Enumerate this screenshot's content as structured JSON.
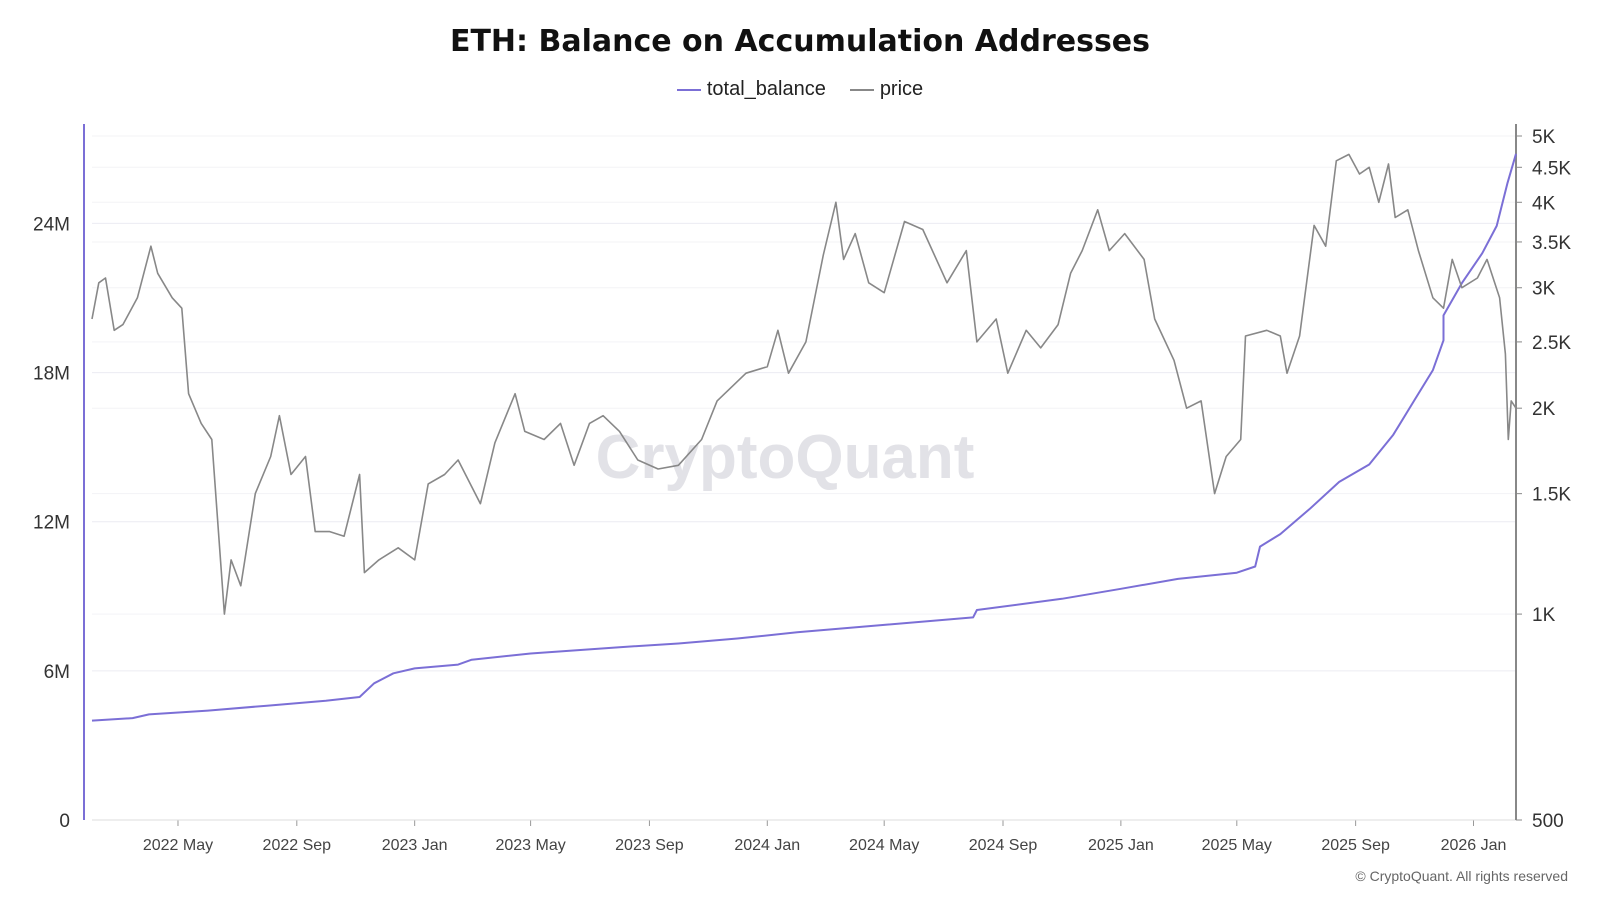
{
  "chart_data": {
    "type": "line",
    "title": "ETH: Balance on Accumulation Addresses",
    "watermark": "CryptoQuant",
    "copyright": "© CryptoQuant. All rights reserved",
    "legend_placement": "top-center",
    "grid": true,
    "x_ticks": [
      "2022 May",
      "2022 Sep",
      "2023 Jan",
      "2023 May",
      "2023 Sep",
      "2024 Jan",
      "2024 May",
      "2024 Sep",
      "2025 Jan",
      "2025 May",
      "2025 Sep",
      "2026 Jan"
    ],
    "x_range": [
      "2022-02-01",
      "2026-02-14"
    ],
    "y_left": {
      "ticks": [
        "0",
        "6M",
        "12M",
        "18M",
        "24M"
      ],
      "tick_values": [
        0,
        6000000,
        12000000,
        18000000,
        24000000
      ],
      "range": [
        0,
        28000000
      ]
    },
    "y_right": {
      "scale": "log",
      "ticks": [
        "500",
        "1K",
        "1.5K",
        "2K",
        "2.5K",
        "3K",
        "3.5K",
        "4K",
        "4.5K",
        "5K"
      ],
      "tick_values": [
        500,
        1000,
        1500,
        2000,
        2500,
        3000,
        3500,
        4000,
        4500,
        5000
      ],
      "range": [
        500,
        5000
      ]
    },
    "series": [
      {
        "name": "total_balance",
        "axis": "left",
        "color": "#7b6fd6",
        "points": [
          [
            "2022-02-01",
            4000000
          ],
          [
            "2022-03-15",
            4100000
          ],
          [
            "2022-04-01",
            4250000
          ],
          [
            "2022-06-01",
            4400000
          ],
          [
            "2022-08-01",
            4600000
          ],
          [
            "2022-10-01",
            4800000
          ],
          [
            "2022-11-05",
            4950000
          ],
          [
            "2022-11-20",
            5500000
          ],
          [
            "2022-12-10",
            5900000
          ],
          [
            "2023-01-01",
            6100000
          ],
          [
            "2023-02-15",
            6250000
          ],
          [
            "2023-03-01",
            6450000
          ],
          [
            "2023-05-01",
            6700000
          ],
          [
            "2023-08-01",
            6950000
          ],
          [
            "2023-10-01",
            7100000
          ],
          [
            "2023-12-01",
            7300000
          ],
          [
            "2024-02-01",
            7550000
          ],
          [
            "2024-05-01",
            7850000
          ],
          [
            "2024-08-01",
            8150000
          ],
          [
            "2024-08-05",
            8450000
          ],
          [
            "2024-11-01",
            8900000
          ],
          [
            "2025-01-01",
            9300000
          ],
          [
            "2025-03-01",
            9700000
          ],
          [
            "2025-05-01",
            9950000
          ],
          [
            "2025-05-20",
            10200000
          ],
          [
            "2025-05-25",
            11000000
          ],
          [
            "2025-06-15",
            11500000
          ],
          [
            "2025-07-15",
            12500000
          ],
          [
            "2025-08-15",
            13600000
          ],
          [
            "2025-09-15",
            14300000
          ],
          [
            "2025-10-10",
            15500000
          ],
          [
            "2025-11-01",
            16900000
          ],
          [
            "2025-11-20",
            18100000
          ],
          [
            "2025-12-01",
            19300000
          ],
          [
            "2025-12-01",
            20300000
          ],
          [
            "2025-12-20",
            21600000
          ],
          [
            "2026-01-10",
            22800000
          ],
          [
            "2026-01-25",
            23900000
          ],
          [
            "2026-02-05",
            25600000
          ],
          [
            "2026-02-14",
            26800000
          ]
        ]
      },
      {
        "name": "price",
        "axis": "right",
        "color": "#888888",
        "points": [
          [
            "2022-02-01",
            2700
          ],
          [
            "2022-02-08",
            3050
          ],
          [
            "2022-02-15",
            3100
          ],
          [
            "2022-02-24",
            2600
          ],
          [
            "2022-03-05",
            2650
          ],
          [
            "2022-03-20",
            2900
          ],
          [
            "2022-04-03",
            3450
          ],
          [
            "2022-04-10",
            3150
          ],
          [
            "2022-04-25",
            2900
          ],
          [
            "2022-05-05",
            2800
          ],
          [
            "2022-05-12",
            2100
          ],
          [
            "2022-05-25",
            1900
          ],
          [
            "2022-06-05",
            1800
          ],
          [
            "2022-06-18",
            1000
          ],
          [
            "2022-06-25",
            1200
          ],
          [
            "2022-07-05",
            1100
          ],
          [
            "2022-07-20",
            1500
          ],
          [
            "2022-08-05",
            1700
          ],
          [
            "2022-08-14",
            1950
          ],
          [
            "2022-08-26",
            1600
          ],
          [
            "2022-09-10",
            1700
          ],
          [
            "2022-09-20",
            1320
          ],
          [
            "2022-10-05",
            1320
          ],
          [
            "2022-10-20",
            1300
          ],
          [
            "2022-11-05",
            1600
          ],
          [
            "2022-11-10",
            1150
          ],
          [
            "2022-11-25",
            1200
          ],
          [
            "2022-12-15",
            1250
          ],
          [
            "2023-01-01",
            1200
          ],
          [
            "2023-01-15",
            1550
          ],
          [
            "2023-02-01",
            1600
          ],
          [
            "2023-02-15",
            1680
          ],
          [
            "2023-03-10",
            1450
          ],
          [
            "2023-03-25",
            1780
          ],
          [
            "2023-04-15",
            2100
          ],
          [
            "2023-04-25",
            1850
          ],
          [
            "2023-05-15",
            1800
          ],
          [
            "2023-06-01",
            1900
          ],
          [
            "2023-06-15",
            1650
          ],
          [
            "2023-07-01",
            1900
          ],
          [
            "2023-07-15",
            1950
          ],
          [
            "2023-08-01",
            1850
          ],
          [
            "2023-08-20",
            1680
          ],
          [
            "2023-09-10",
            1630
          ],
          [
            "2023-10-01",
            1650
          ],
          [
            "2023-10-25",
            1800
          ],
          [
            "2023-11-10",
            2050
          ],
          [
            "2023-12-10",
            2250
          ],
          [
            "2024-01-01",
            2300
          ],
          [
            "2024-01-12",
            2600
          ],
          [
            "2024-01-23",
            2250
          ],
          [
            "2024-02-10",
            2500
          ],
          [
            "2024-02-28",
            3350
          ],
          [
            "2024-03-12",
            4000
          ],
          [
            "2024-03-20",
            3300
          ],
          [
            "2024-04-01",
            3600
          ],
          [
            "2024-04-15",
            3050
          ],
          [
            "2024-05-01",
            2950
          ],
          [
            "2024-05-22",
            3750
          ],
          [
            "2024-06-10",
            3650
          ],
          [
            "2024-07-05",
            3050
          ],
          [
            "2024-07-25",
            3400
          ],
          [
            "2024-08-05",
            2500
          ],
          [
            "2024-08-25",
            2700
          ],
          [
            "2024-09-06",
            2250
          ],
          [
            "2024-09-25",
            2600
          ],
          [
            "2024-10-10",
            2450
          ],
          [
            "2024-10-28",
            2650
          ],
          [
            "2024-11-10",
            3150
          ],
          [
            "2024-11-22",
            3400
          ],
          [
            "2024-12-08",
            3900
          ],
          [
            "2024-12-20",
            3400
          ],
          [
            "2025-01-05",
            3600
          ],
          [
            "2025-01-25",
            3300
          ],
          [
            "2025-02-05",
            2700
          ],
          [
            "2025-02-25",
            2350
          ],
          [
            "2025-03-10",
            2000
          ],
          [
            "2025-03-25",
            2050
          ],
          [
            "2025-04-08",
            1500
          ],
          [
            "2025-04-20",
            1700
          ],
          [
            "2025-05-05",
            1800
          ],
          [
            "2025-05-10",
            2550
          ],
          [
            "2025-06-01",
            2600
          ],
          [
            "2025-06-15",
            2550
          ],
          [
            "2025-06-22",
            2250
          ],
          [
            "2025-07-05",
            2550
          ],
          [
            "2025-07-20",
            3700
          ],
          [
            "2025-08-01",
            3450
          ],
          [
            "2025-08-12",
            4600
          ],
          [
            "2025-08-25",
            4700
          ],
          [
            "2025-09-05",
            4400
          ],
          [
            "2025-09-15",
            4500
          ],
          [
            "2025-09-25",
            4000
          ],
          [
            "2025-10-05",
            4550
          ],
          [
            "2025-10-12",
            3800
          ],
          [
            "2025-10-25",
            3900
          ],
          [
            "2025-11-05",
            3400
          ],
          [
            "2025-11-20",
            2900
          ],
          [
            "2025-12-01",
            2800
          ],
          [
            "2025-12-10",
            3300
          ],
          [
            "2025-12-20",
            3000
          ],
          [
            "2026-01-05",
            3100
          ],
          [
            "2026-01-15",
            3300
          ],
          [
            "2026-01-28",
            2900
          ],
          [
            "2026-02-03",
            2400
          ],
          [
            "2026-02-06",
            1800
          ],
          [
            "2026-02-09",
            2050
          ],
          [
            "2026-02-14",
            2000
          ]
        ]
      }
    ]
  }
}
